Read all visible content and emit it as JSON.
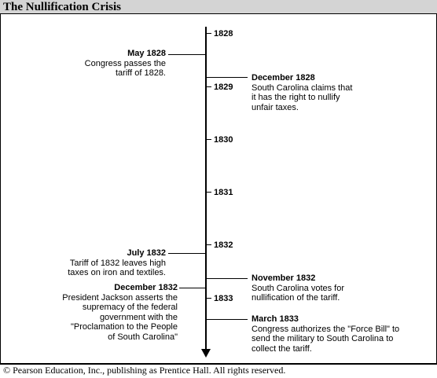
{
  "title": "The Nullification Crisis",
  "footer": "© Pearson Education, Inc., publishing as Prentice Hall. All rights reserved.",
  "timeline": {
    "years": [
      "1828",
      "1829",
      "1830",
      "1831",
      "1832",
      "1833"
    ],
    "events": [
      {
        "date": "May 1828",
        "text": "Congress passes the\ntariff of 1828.",
        "side": "left"
      },
      {
        "date": "December 1828",
        "text": "South Carolina claims that\nit has the right to nullify\nunfair taxes.",
        "side": "right"
      },
      {
        "date": "July 1832",
        "text": "Tariff of 1832 leaves high\ntaxes on iron and textiles.",
        "side": "left"
      },
      {
        "date": "November 1832",
        "text": "South Carolina votes for\nnullification of the tariff.",
        "side": "right"
      },
      {
        "date": "December 1832",
        "text": "President Jackson asserts the\nsupremacy of the federal\ngovernment with the\n\"Proclamation to the People\nof South Carolina\"",
        "side": "left"
      },
      {
        "date": "March 1833",
        "text": "Congress authorizes the \"Force Bill\" to\nsend the military to South Carolina to\ncollect the tariff.",
        "side": "right"
      }
    ]
  }
}
